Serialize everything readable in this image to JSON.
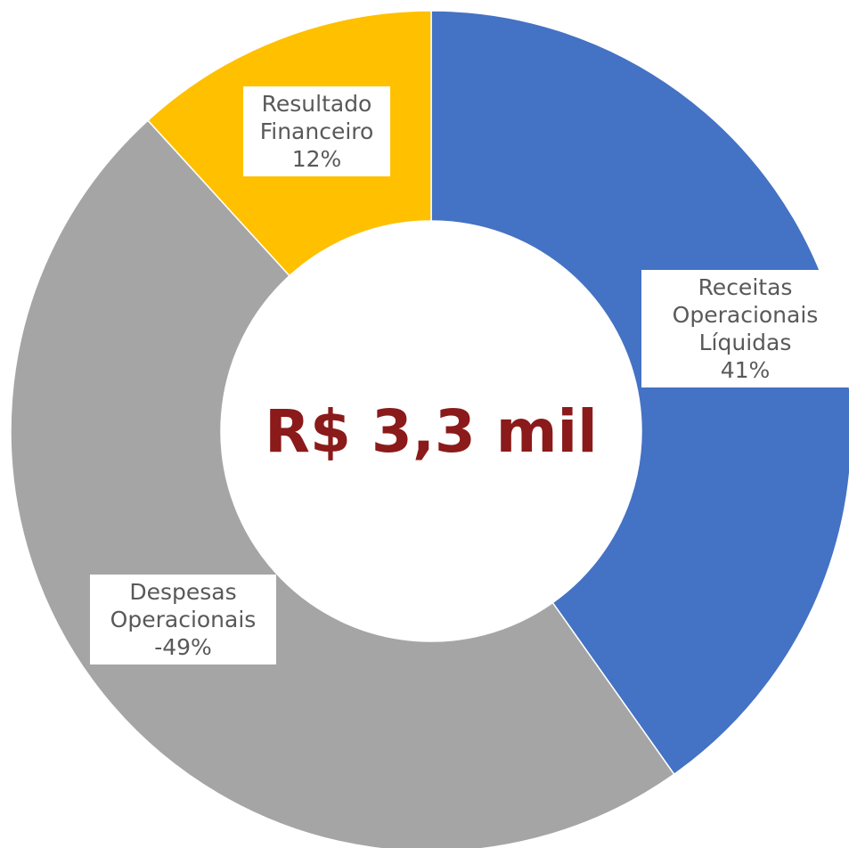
{
  "chart_data": {
    "type": "donut",
    "center_label": "R$ 3,3 mil",
    "categories": [
      "Receitas Operacionais Líquidas",
      "Despesas Operacionais",
      "Resultado Financeiro"
    ],
    "values": [
      41,
      -49,
      12
    ],
    "value_labels": [
      "41%",
      "-49%",
      "12%"
    ],
    "colors": [
      "#4472c4",
      "#a5a5a5",
      "#ffc000"
    ]
  }
}
